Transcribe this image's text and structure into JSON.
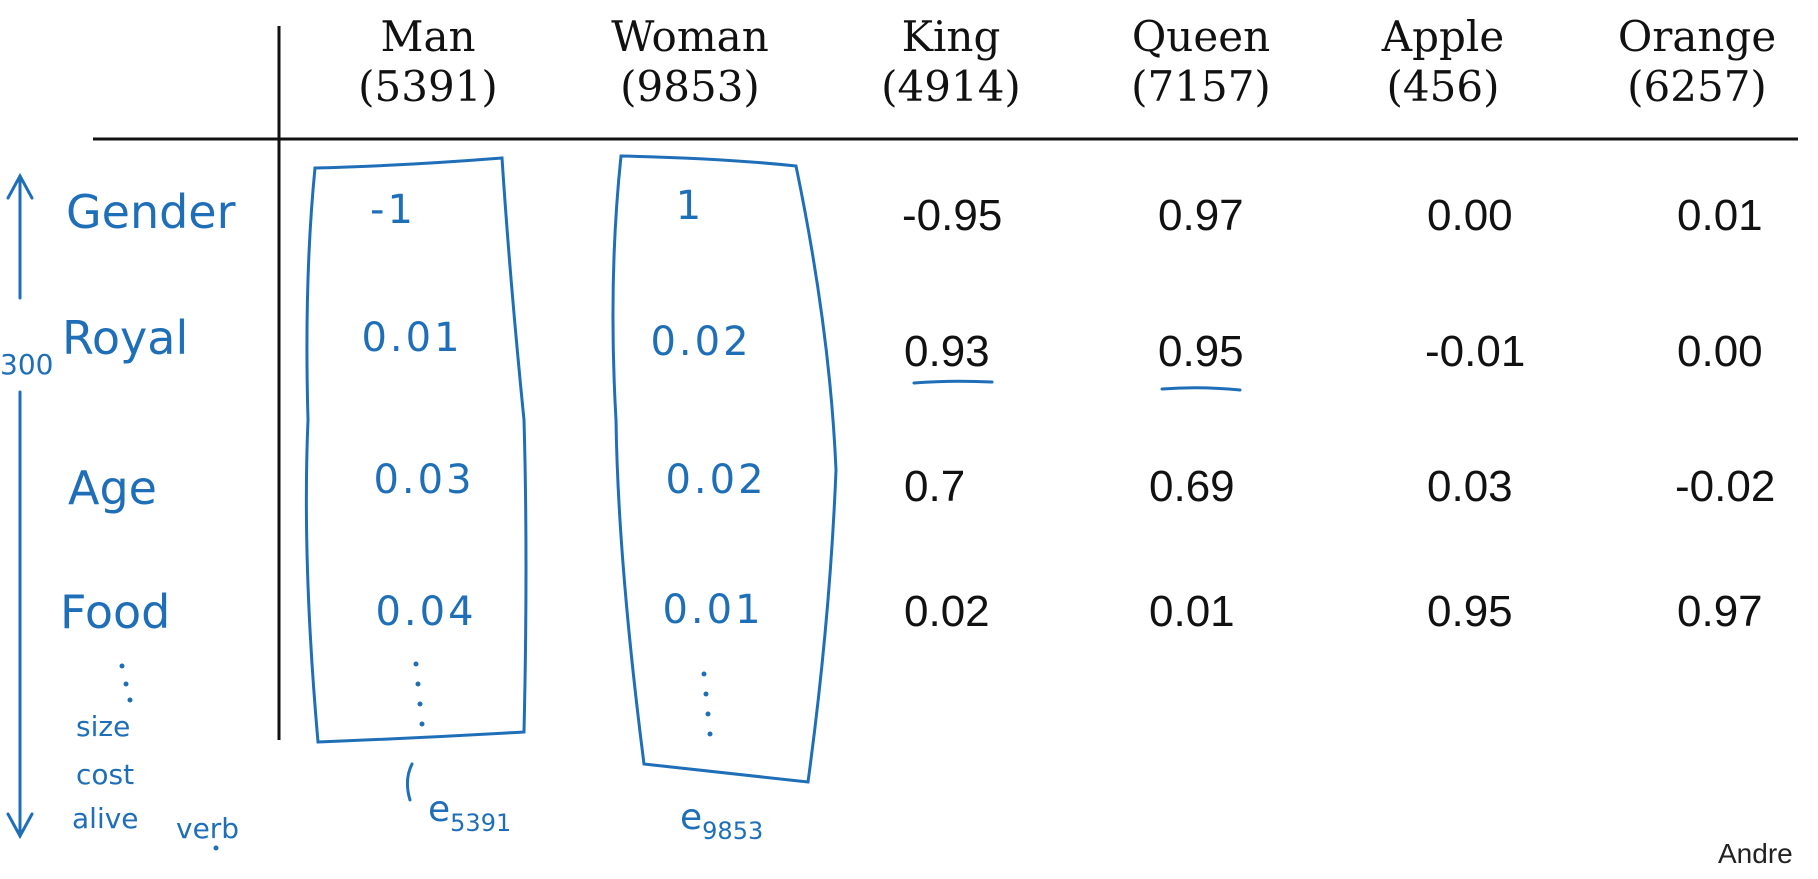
{
  "columns": [
    {
      "word": "Man",
      "index": "(5391)"
    },
    {
      "word": "Woman",
      "index": "(9853)"
    },
    {
      "word": "King",
      "index": "(4914)"
    },
    {
      "word": "Queen",
      "index": "(7157)"
    },
    {
      "word": "Apple",
      "index": "(456)"
    },
    {
      "word": "Orange",
      "index": "(6257)"
    }
  ],
  "features": [
    "Gender",
    "Royal",
    "Age",
    "Food"
  ],
  "extra_features": [
    "size",
    "cost",
    "alive",
    "verb"
  ],
  "dimension_label": "300",
  "table": {
    "King": [
      "-0.95",
      "0.93",
      "0.7",
      "0.02"
    ],
    "Queen": [
      "0.97",
      "0.95",
      "0.69",
      "0.01"
    ],
    "Apple": [
      "0.00",
      "-0.01",
      "0.03",
      "0.95"
    ],
    "Orange": [
      "0.01",
      "0.00",
      "-0.02",
      "0.97"
    ]
  },
  "handwritten_vectors": {
    "man": [
      "-1",
      "0.01",
      "0.03",
      "0.04"
    ],
    "woman": [
      "1",
      "0.02",
      "0.02",
      "0.01"
    ]
  },
  "vector_labels": {
    "man": {
      "letter": "e",
      "subscript": "5391"
    },
    "woman": {
      "letter": "e",
      "subscript": "9853"
    }
  },
  "credit": "Andre",
  "colors": {
    "ink": "#1f6fb8",
    "text": "#111111",
    "background": "#ffffff"
  }
}
